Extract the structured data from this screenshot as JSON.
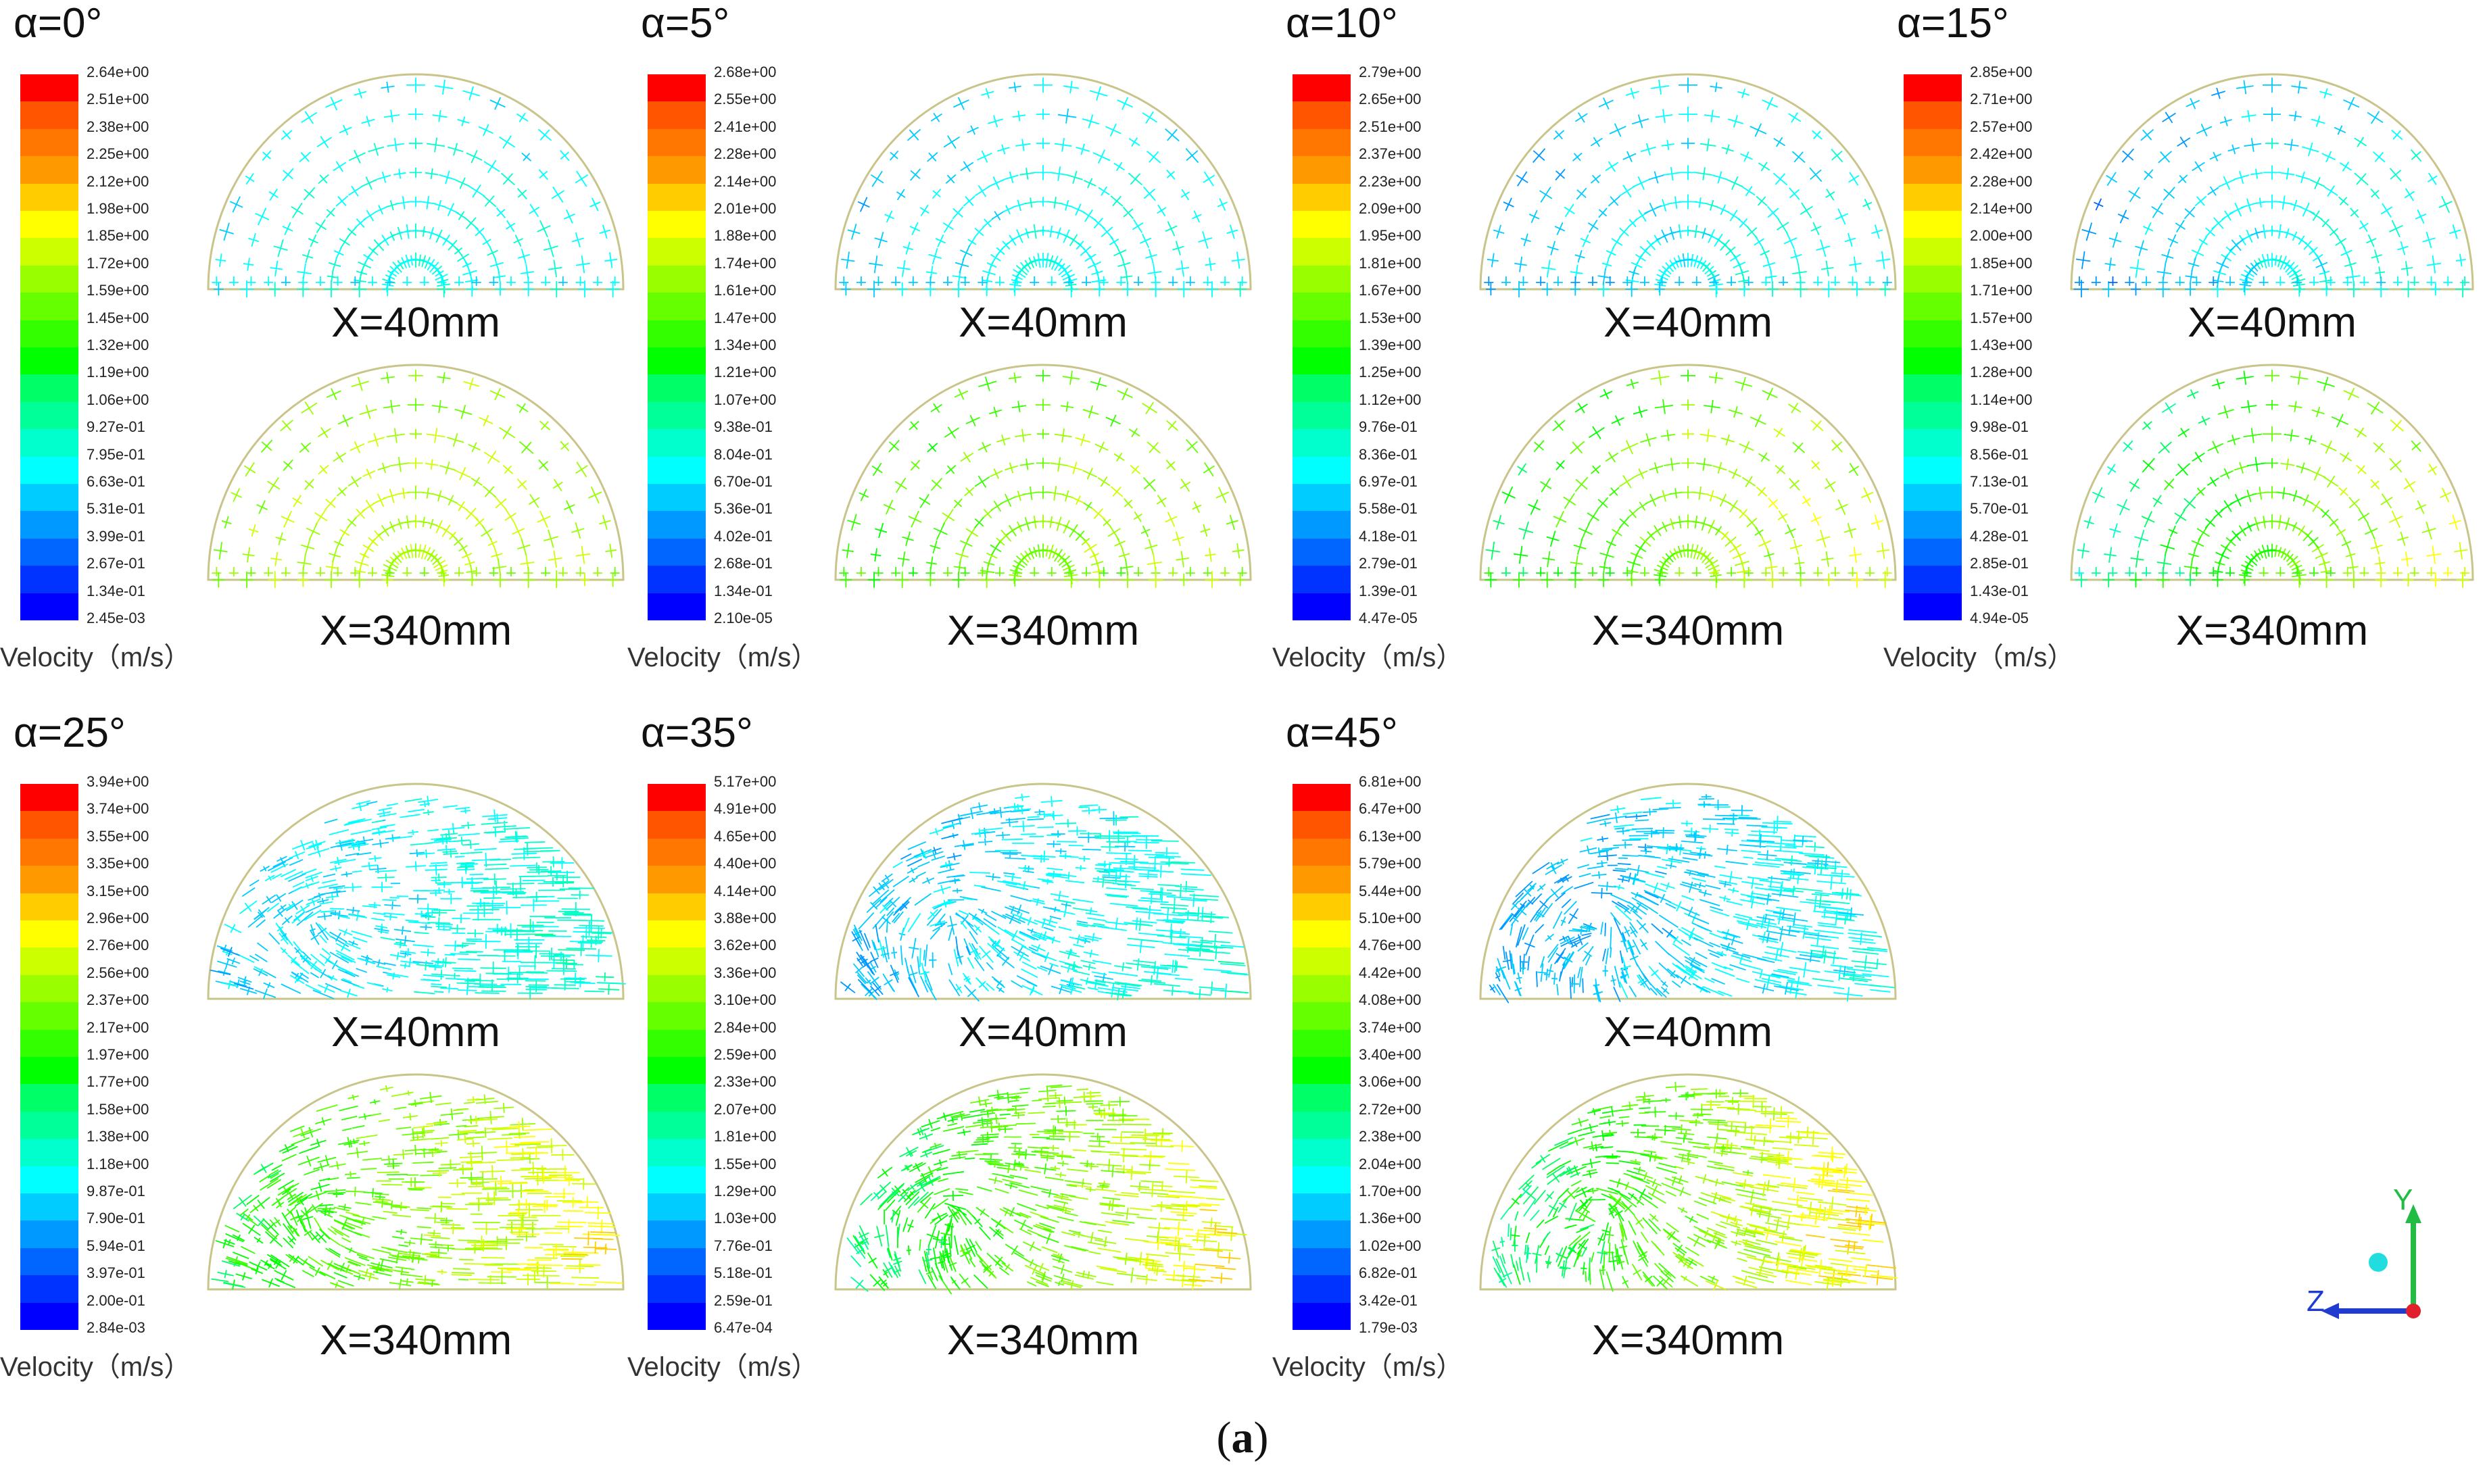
{
  "caption": "(a)",
  "velocity_label": "Velocity（m/s）",
  "section_labels": {
    "upper": "X=40mm",
    "lower": "X=340mm"
  },
  "axis_labels": {
    "y": "Y",
    "z": "Z"
  },
  "colors": {
    "dome_outline": "#c9c48a",
    "axis_y": "#22bb44",
    "axis_z": "#1f3ccf",
    "axis_x": "#e0202a",
    "axis_dot": "#22dddd"
  },
  "colormap": [
    "#0000ff",
    "#0033ff",
    "#0066ff",
    "#0099ff",
    "#00ccff",
    "#00ffff",
    "#00ffcc",
    "#00ff99",
    "#00ff66",
    "#00ff00",
    "#33ff00",
    "#66ff00",
    "#99ff00",
    "#ccff00",
    "#ffff00",
    "#ffcc00",
    "#ff9900",
    "#ff7700",
    "#ff5500",
    "#ff0000"
  ],
  "panels": [
    {
      "alpha": "α=0°",
      "ticks": [
        "2.64e+00",
        "2.51e+00",
        "2.38e+00",
        "2.25e+00",
        "2.12e+00",
        "1.98e+00",
        "1.85e+00",
        "1.72e+00",
        "1.59e+00",
        "1.45e+00",
        "1.32e+00",
        "1.19e+00",
        "1.06e+00",
        "9.27e-01",
        "7.95e-01",
        "6.63e-01",
        "5.31e-01",
        "3.99e-01",
        "2.67e-01",
        "1.34e-01",
        "2.45e-03"
      ],
      "flow": {
        "upper": {
          "level": 0.3,
          "spread": 0.05,
          "tilt": 0.0,
          "vortex": 0.0
        },
        "lower": {
          "level": 0.65,
          "spread": 0.08,
          "tilt": 0.0,
          "vortex": 0.0
        }
      }
    },
    {
      "alpha": "α=5°",
      "ticks": [
        "2.68e+00",
        "2.55e+00",
        "2.41e+00",
        "2.28e+00",
        "2.14e+00",
        "2.01e+00",
        "1.88e+00",
        "1.74e+00",
        "1.61e+00",
        "1.47e+00",
        "1.34e+00",
        "1.21e+00",
        "1.07e+00",
        "9.38e-01",
        "8.04e-01",
        "6.70e-01",
        "5.36e-01",
        "4.02e-01",
        "2.68e-01",
        "1.34e-01",
        "2.10e-05"
      ],
      "flow": {
        "upper": {
          "level": 0.28,
          "spread": 0.06,
          "tilt": 0.05,
          "vortex": 0.0
        },
        "lower": {
          "level": 0.6,
          "spread": 0.1,
          "tilt": 0.1,
          "vortex": 0.0
        }
      }
    },
    {
      "alpha": "α=10°",
      "ticks": [
        "2.79e+00",
        "2.65e+00",
        "2.51e+00",
        "2.37e+00",
        "2.23e+00",
        "2.09e+00",
        "1.95e+00",
        "1.81e+00",
        "1.67e+00",
        "1.53e+00",
        "1.39e+00",
        "1.25e+00",
        "1.12e+00",
        "9.76e-01",
        "8.36e-01",
        "6.97e-01",
        "5.58e-01",
        "4.18e-01",
        "2.79e-01",
        "1.39e-01",
        "4.47e-05"
      ],
      "flow": {
        "upper": {
          "level": 0.27,
          "spread": 0.07,
          "tilt": 0.08,
          "vortex": 0.0
        },
        "lower": {
          "level": 0.6,
          "spread": 0.12,
          "tilt": 0.18,
          "vortex": 0.0
        }
      }
    },
    {
      "alpha": "α=15°",
      "ticks": [
        "2.85e+00",
        "2.71e+00",
        "2.57e+00",
        "2.42e+00",
        "2.28e+00",
        "2.14e+00",
        "2.00e+00",
        "1.85e+00",
        "1.71e+00",
        "1.57e+00",
        "1.43e+00",
        "1.28e+00",
        "1.14e+00",
        "9.98e-01",
        "8.56e-01",
        "7.13e-01",
        "5.70e-01",
        "4.28e-01",
        "2.85e-01",
        "1.43e-01",
        "4.94e-05"
      ],
      "flow": {
        "upper": {
          "level": 0.27,
          "spread": 0.08,
          "tilt": 0.1,
          "vortex": 0.0
        },
        "lower": {
          "level": 0.55,
          "spread": 0.12,
          "tilt": 0.3,
          "vortex": 0.0
        }
      }
    },
    {
      "alpha": "α=25°",
      "ticks": [
        "3.94e+00",
        "3.74e+00",
        "3.55e+00",
        "3.35e+00",
        "3.15e+00",
        "2.96e+00",
        "2.76e+00",
        "2.56e+00",
        "2.37e+00",
        "2.17e+00",
        "1.97e+00",
        "1.77e+00",
        "1.58e+00",
        "1.38e+00",
        "1.18e+00",
        "9.87e-01",
        "7.90e-01",
        "5.94e-01",
        "3.97e-01",
        "2.00e-01",
        "2.84e-03"
      ],
      "flow": {
        "upper": {
          "level": 0.22,
          "spread": 0.08,
          "tilt": 0.12,
          "vortex": 0.4
        },
        "lower": {
          "level": 0.45,
          "spread": 0.1,
          "tilt": 0.3,
          "vortex": 0.4
        }
      }
    },
    {
      "alpha": "α=35°",
      "ticks": [
        "5.17e+00",
        "4.91e+00",
        "4.65e+00",
        "4.40e+00",
        "4.14e+00",
        "3.88e+00",
        "3.62e+00",
        "3.36e+00",
        "3.10e+00",
        "2.84e+00",
        "2.59e+00",
        "2.33e+00",
        "2.07e+00",
        "1.81e+00",
        "1.55e+00",
        "1.29e+00",
        "1.03e+00",
        "7.76e-01",
        "5.18e-01",
        "2.59e-01",
        "6.47e-04"
      ],
      "flow": {
        "upper": {
          "level": 0.2,
          "spread": 0.08,
          "tilt": 0.12,
          "vortex": 0.7
        },
        "lower": {
          "level": 0.4,
          "spread": 0.1,
          "tilt": 0.35,
          "vortex": 0.7
        }
      }
    },
    {
      "alpha": "α=45°",
      "ticks": [
        "6.81e+00",
        "6.47e+00",
        "6.13e+00",
        "5.79e+00",
        "5.44e+00",
        "5.10e+00",
        "4.76e+00",
        "4.42e+00",
        "4.08e+00",
        "3.74e+00",
        "3.40e+00",
        "3.06e+00",
        "2.72e+00",
        "2.38e+00",
        "2.04e+00",
        "1.70e+00",
        "1.36e+00",
        "1.02e+00",
        "6.82e-01",
        "3.42e-01",
        "1.79e-03"
      ],
      "flow": {
        "upper": {
          "level": 0.18,
          "spread": 0.08,
          "tilt": 0.12,
          "vortex": 0.9
        },
        "lower": {
          "level": 0.38,
          "spread": 0.1,
          "tilt": 0.4,
          "vortex": 0.9
        }
      }
    }
  ]
}
